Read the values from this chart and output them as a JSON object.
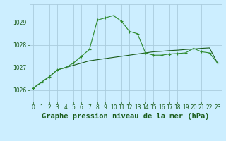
{
  "title": "Graphe pression niveau de la mer (hPa)",
  "background_color": "#cceeff",
  "grid_color": "#aaccdd",
  "line1_color": "#1a5c1a",
  "line2_color": "#2d8a2d",
  "x_ticks": [
    0,
    1,
    2,
    3,
    4,
    5,
    6,
    7,
    8,
    9,
    10,
    11,
    12,
    13,
    14,
    15,
    16,
    17,
    18,
    19,
    20,
    21,
    22,
    23
  ],
  "y_ticks": [
    1026,
    1027,
    1028,
    1029
  ],
  "ylim": [
    1025.5,
    1029.8
  ],
  "xlim": [
    -0.5,
    23.5
  ],
  "line1_x": [
    0,
    1,
    2,
    3,
    4,
    5,
    6,
    7,
    8,
    9,
    10,
    11,
    12,
    13,
    14,
    15,
    16,
    17,
    18,
    19,
    20,
    21,
    22,
    23
  ],
  "line1_y": [
    1026.1,
    1026.35,
    1026.6,
    1026.9,
    1027.0,
    1027.1,
    1027.2,
    1027.3,
    1027.35,
    1027.4,
    1027.45,
    1027.5,
    1027.55,
    1027.6,
    1027.65,
    1027.7,
    1027.72,
    1027.75,
    1027.77,
    1027.8,
    1027.82,
    1027.85,
    1027.87,
    1027.2
  ],
  "line2_x": [
    0,
    1,
    2,
    3,
    4,
    5,
    6,
    7,
    8,
    9,
    10,
    11,
    12,
    13,
    14,
    15,
    16,
    17,
    18,
    19,
    20,
    21,
    22,
    23
  ],
  "line2_y": [
    1026.1,
    1026.35,
    1026.6,
    1026.9,
    1027.0,
    1027.2,
    1027.5,
    1027.8,
    1029.1,
    1029.2,
    1029.3,
    1029.05,
    1028.6,
    1028.5,
    1027.65,
    1027.55,
    1027.55,
    1027.6,
    1027.62,
    1027.65,
    1027.85,
    1027.7,
    1027.65,
    1027.2
  ],
  "title_fontsize": 7.5,
  "tick_fontsize": 5.5,
  "tick_color": "#1a5c1a"
}
